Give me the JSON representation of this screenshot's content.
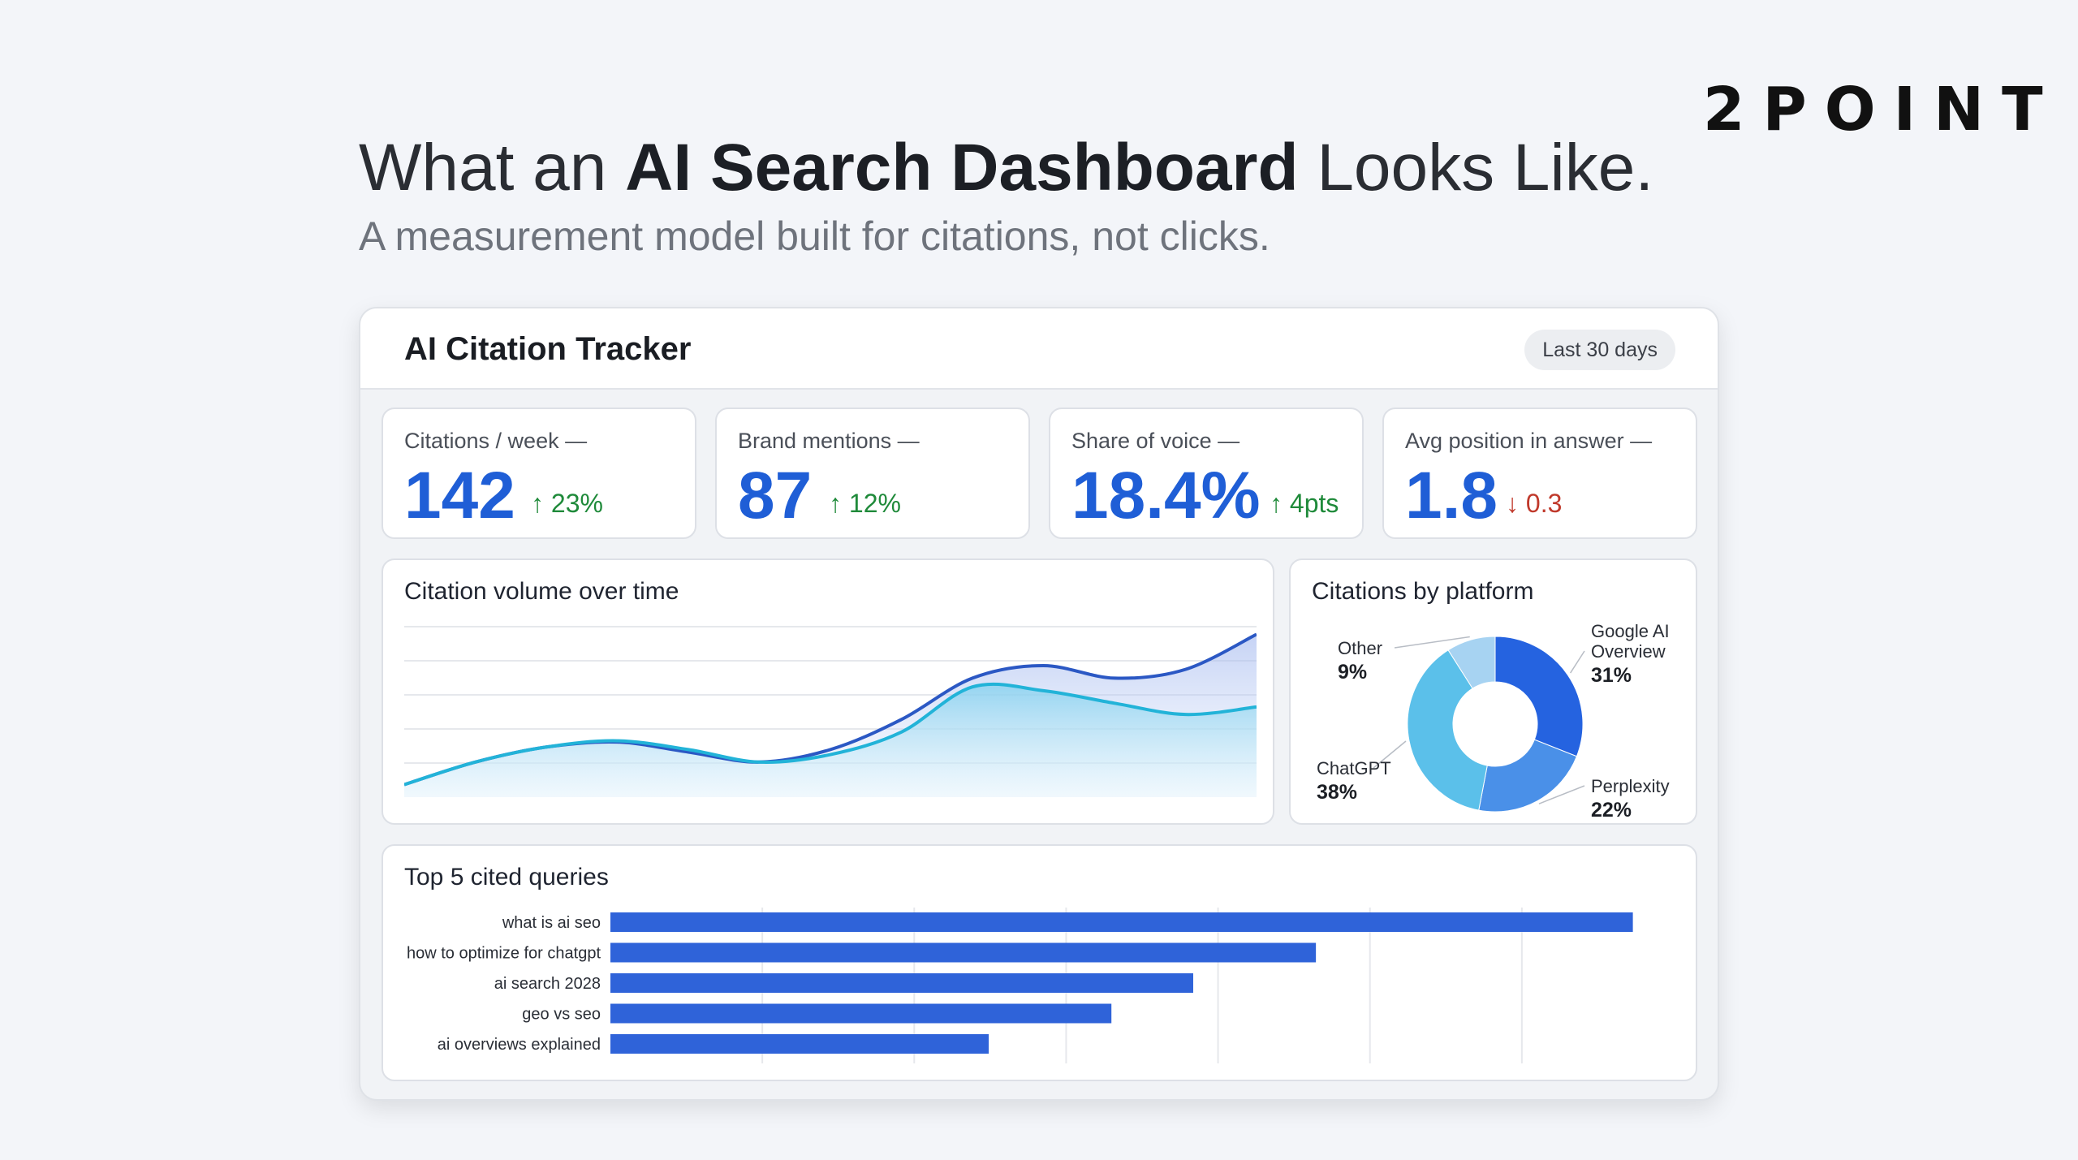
{
  "brand": "2POINT",
  "headline": {
    "prefix": "What an ",
    "bold": "AI Search Dashboard",
    "suffix": " Looks Like."
  },
  "subhead": "A measurement model built for citations, not clicks.",
  "tracker": {
    "title": "AI Citation Tracker",
    "range": "Last 30 days"
  },
  "kpis": [
    {
      "label": "Citations / week —",
      "value": "142",
      "delta": "↑ 23%",
      "trend": "up"
    },
    {
      "label": "Brand mentions —",
      "value": "87",
      "delta": "↑ 12%",
      "trend": "up"
    },
    {
      "label": "Share of voice —",
      "value": "18.4%",
      "delta": "↑ 4pts",
      "trend": "up"
    },
    {
      "label": "Avg position in answer —",
      "value": "1.8",
      "delta": "↓ 0.3",
      "trend": "down"
    }
  ],
  "colors": {
    "accent": "#1f5ed6",
    "up": "#1f8a3a",
    "down": "#c0392b",
    "bar": "#2f63d9"
  },
  "chart_data": [
    {
      "type": "line",
      "title": "Citation volume over time",
      "x": [
        0,
        1,
        2,
        3,
        4,
        5,
        6,
        7,
        8,
        9,
        10,
        11,
        12
      ],
      "series": [
        {
          "values": [
            10,
            28,
            40,
            45,
            38,
            28,
            34,
            52,
            88,
            85,
            75,
            66,
            72
          ]
        },
        {
          "values": [
            10,
            28,
            40,
            44,
            36,
            28,
            38,
            62,
            95,
            105,
            95,
            102,
            130
          ]
        }
      ],
      "ylim": [
        0,
        140
      ],
      "grid": true
    },
    {
      "type": "pie",
      "title": "Citations by platform",
      "labels": [
        "Google AI Overview",
        "Perplexity",
        "ChatGPT",
        "Other"
      ],
      "label_lines": [
        [
          "Google AI",
          "Overview"
        ],
        [
          "Perplexity"
        ],
        [
          "ChatGPT"
        ],
        [
          "Other"
        ]
      ],
      "values": [
        31,
        22,
        38,
        9
      ],
      "value_labels": [
        "31%",
        "22%",
        "38%",
        "9%"
      ],
      "colors": [
        "#2563e0",
        "#4a90e8",
        "#5bc0ea",
        "#a7d3f2"
      ]
    },
    {
      "type": "bar",
      "orientation": "horizontal",
      "title": "Top 5 cited queries",
      "categories": [
        "what is ai seo",
        "how to optimize for chatgpt",
        "ai search 2028",
        "geo vs seo",
        "ai overviews explained"
      ],
      "values": [
        100,
        69,
        57,
        49,
        37
      ],
      "xlim": [
        0,
        104
      ],
      "grid": true
    }
  ]
}
